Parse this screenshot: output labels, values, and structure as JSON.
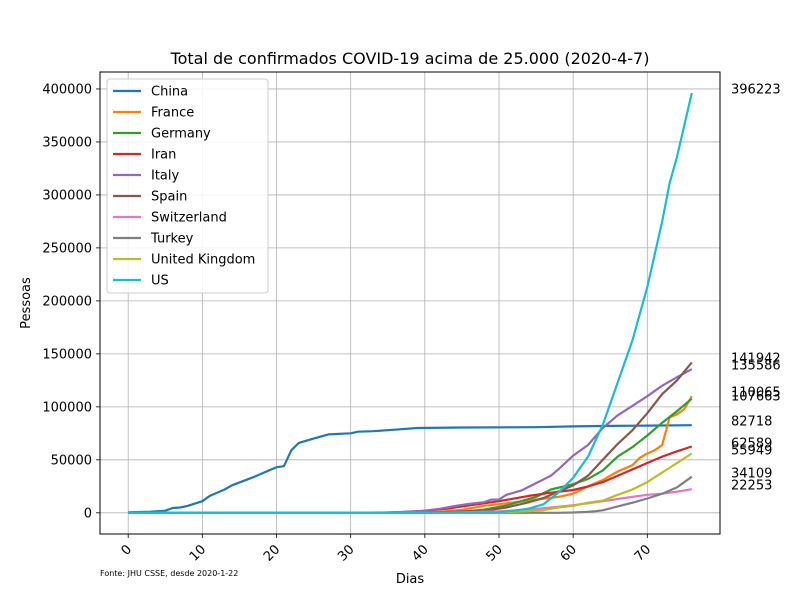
{
  "chart_data": {
    "type": "line",
    "title": "Total de confirmados COVID-19 acima de 25.000 (2020-4-7)",
    "xlabel": "Dias",
    "ylabel": "Pessoas",
    "source_note": "Fonte: JHU CSSE, desde 2020-1-22",
    "xlim": [
      -3.8,
      79.8
    ],
    "ylim": [
      -20000,
      416000
    ],
    "x_ticks": [
      0,
      10,
      20,
      30,
      40,
      50,
      60,
      70
    ],
    "y_ticks": [
      0,
      50000,
      100000,
      150000,
      200000,
      250000,
      300000,
      350000,
      400000
    ],
    "y_tick_labels": [
      "0",
      "50000",
      "100000",
      "150000",
      "200000",
      "250000",
      "300000",
      "350000",
      "400000"
    ],
    "grid": true,
    "legend_position": "upper-left",
    "series": [
      {
        "name": "China",
        "color": "#1f77b4",
        "end_label": "82718",
        "points": [
          [
            0,
            548
          ],
          [
            3,
            1000
          ],
          [
            5,
            2000
          ],
          [
            6,
            4500
          ],
          [
            7,
            5000
          ],
          [
            8,
            6500
          ],
          [
            10,
            11000
          ],
          [
            11,
            16000
          ],
          [
            13,
            22000
          ],
          [
            14,
            26000
          ],
          [
            17,
            34000
          ],
          [
            19,
            40000
          ],
          [
            20,
            43000
          ],
          [
            21,
            44000
          ],
          [
            22,
            59000
          ],
          [
            23,
            66000
          ],
          [
            25,
            70000
          ],
          [
            27,
            74000
          ],
          [
            30,
            75000
          ],
          [
            31,
            76500
          ],
          [
            33,
            77000
          ],
          [
            35,
            78000
          ],
          [
            39,
            80000
          ],
          [
            45,
            80500
          ],
          [
            55,
            80800
          ],
          [
            60,
            81500
          ],
          [
            65,
            82000
          ],
          [
            70,
            82300
          ],
          [
            76,
            82718
          ]
        ]
      },
      {
        "name": "France",
        "color": "#ff7f0e",
        "end_label": "110065",
        "points": [
          [
            0,
            0
          ],
          [
            38,
            100
          ],
          [
            42,
            1000
          ],
          [
            45,
            2800
          ],
          [
            48,
            6600
          ],
          [
            51,
            9000
          ],
          [
            55,
            12500
          ],
          [
            58,
            15000
          ],
          [
            60,
            18000
          ],
          [
            62,
            25000
          ],
          [
            64,
            31000
          ],
          [
            66,
            39000
          ],
          [
            68,
            45000
          ],
          [
            69,
            52000
          ],
          [
            70,
            56000
          ],
          [
            71,
            59000
          ],
          [
            72,
            64000
          ],
          [
            73,
            90000
          ],
          [
            74,
            93000
          ],
          [
            75,
            98000
          ],
          [
            76,
            110065
          ]
        ]
      },
      {
        "name": "Germany",
        "color": "#2ca02c",
        "end_label": "107663",
        "points": [
          [
            0,
            0
          ],
          [
            38,
            50
          ],
          [
            42,
            200
          ],
          [
            45,
            1000
          ],
          [
            48,
            3000
          ],
          [
            51,
            7000
          ],
          [
            55,
            15000
          ],
          [
            57,
            22000
          ],
          [
            60,
            27000
          ],
          [
            62,
            32000
          ],
          [
            64,
            40000
          ],
          [
            66,
            53000
          ],
          [
            68,
            62000
          ],
          [
            70,
            73000
          ],
          [
            72,
            85000
          ],
          [
            74,
            96000
          ],
          [
            76,
            107663
          ]
        ]
      },
      {
        "name": "Iran",
        "color": "#d62728",
        "end_label": "62589",
        "points": [
          [
            0,
            0
          ],
          [
            30,
            0
          ],
          [
            38,
            500
          ],
          [
            40,
            2000
          ],
          [
            43,
            4000
          ],
          [
            46,
            7000
          ],
          [
            48,
            9000
          ],
          [
            50,
            11000
          ],
          [
            54,
            16000
          ],
          [
            57,
            19000
          ],
          [
            60,
            21500
          ],
          [
            62,
            24800
          ],
          [
            64,
            29000
          ],
          [
            66,
            35000
          ],
          [
            68,
            41000
          ],
          [
            70,
            47000
          ],
          [
            72,
            53000
          ],
          [
            74,
            58000
          ],
          [
            76,
            62589
          ]
        ]
      },
      {
        "name": "Italy",
        "color": "#9467bd",
        "end_label": "135586",
        "points": [
          [
            0,
            0
          ],
          [
            30,
            0
          ],
          [
            34,
            200
          ],
          [
            37,
            900
          ],
          [
            40,
            2000
          ],
          [
            42,
            3800
          ],
          [
            44,
            6300
          ],
          [
            46,
            8500
          ],
          [
            48,
            10000
          ],
          [
            49,
            12500
          ],
          [
            50,
            12500
          ],
          [
            51,
            17000
          ],
          [
            53,
            21000
          ],
          [
            55,
            28000
          ],
          [
            57,
            35000
          ],
          [
            58,
            41000
          ],
          [
            60,
            54000
          ],
          [
            62,
            64000
          ],
          [
            64,
            80000
          ],
          [
            66,
            92000
          ],
          [
            68,
            101000
          ],
          [
            70,
            110000
          ],
          [
            72,
            120000
          ],
          [
            74,
            128000
          ],
          [
            76,
            135586
          ]
        ]
      },
      {
        "name": "Spain",
        "color": "#8c564b",
        "end_label": "141942",
        "points": [
          [
            0,
            0
          ],
          [
            38,
            0
          ],
          [
            41,
            500
          ],
          [
            44,
            1000
          ],
          [
            48,
            2000
          ],
          [
            51,
            5000
          ],
          [
            54,
            9900
          ],
          [
            56,
            14000
          ],
          [
            58,
            20000
          ],
          [
            60,
            26000
          ],
          [
            62,
            35000
          ],
          [
            64,
            50000
          ],
          [
            66,
            65000
          ],
          [
            68,
            78000
          ],
          [
            70,
            94000
          ],
          [
            72,
            112000
          ],
          [
            74,
            125000
          ],
          [
            76,
            141942
          ]
        ]
      },
      {
        "name": "Switzerland",
        "color": "#e377c2",
        "end_label": "22253",
        "points": [
          [
            0,
            0
          ],
          [
            40,
            0
          ],
          [
            45,
            500
          ],
          [
            50,
            1400
          ],
          [
            54,
            3000
          ],
          [
            57,
            5000
          ],
          [
            60,
            7200
          ],
          [
            62,
            9000
          ],
          [
            64,
            11000
          ],
          [
            66,
            13000
          ],
          [
            68,
            15000
          ],
          [
            70,
            17000
          ],
          [
            72,
            18000
          ],
          [
            74,
            20000
          ],
          [
            76,
            22253
          ]
        ]
      },
      {
        "name": "Turkey",
        "color": "#7f7f7f",
        "end_label": "34109",
        "points": [
          [
            0,
            0
          ],
          [
            55,
            0
          ],
          [
            58,
            50
          ],
          [
            60,
            300
          ],
          [
            62,
            950
          ],
          [
            63,
            1500
          ],
          [
            64,
            2400
          ],
          [
            66,
            6000
          ],
          [
            68,
            9500
          ],
          [
            70,
            13500
          ],
          [
            72,
            18000
          ],
          [
            74,
            24000
          ],
          [
            76,
            34109
          ]
        ]
      },
      {
        "name": "United Kingdom",
        "color": "#bcbd22",
        "end_label": "55949",
        "points": [
          [
            0,
            0
          ],
          [
            40,
            0
          ],
          [
            45,
            100
          ],
          [
            50,
            400
          ],
          [
            54,
            1500
          ],
          [
            56,
            2600
          ],
          [
            58,
            5000
          ],
          [
            60,
            6600
          ],
          [
            62,
            9500
          ],
          [
            64,
            11500
          ],
          [
            66,
            17000
          ],
          [
            68,
            22000
          ],
          [
            70,
            29000
          ],
          [
            72,
            38000
          ],
          [
            74,
            47000
          ],
          [
            76,
            55949
          ]
        ]
      },
      {
        "name": "US",
        "color": "#17becf",
        "end_label": "396223",
        "points": [
          [
            0,
            0
          ],
          [
            40,
            0
          ],
          [
            45,
            100
          ],
          [
            48,
            200
          ],
          [
            50,
            500
          ],
          [
            52,
            2000
          ],
          [
            54,
            4000
          ],
          [
            56,
            8000
          ],
          [
            58,
            19000
          ],
          [
            60,
            33000
          ],
          [
            62,
            53000
          ],
          [
            64,
            83000
          ],
          [
            66,
            123000
          ],
          [
            68,
            163000
          ],
          [
            70,
            213000
          ],
          [
            72,
            275000
          ],
          [
            73,
            311000
          ],
          [
            74,
            336000
          ],
          [
            75,
            366000
          ],
          [
            76,
            396223
          ]
        ]
      }
    ],
    "end_labels": [
      {
        "text": "396223"
      },
      {
        "text": "141942"
      },
      {
        "text": "135586"
      },
      {
        "text": "110065"
      },
      {
        "text": "107663"
      },
      {
        "text": "82718"
      },
      {
        "text": "62589"
      },
      {
        "text": "55949"
      },
      {
        "text": "34109"
      },
      {
        "text": "22253"
      }
    ]
  }
}
